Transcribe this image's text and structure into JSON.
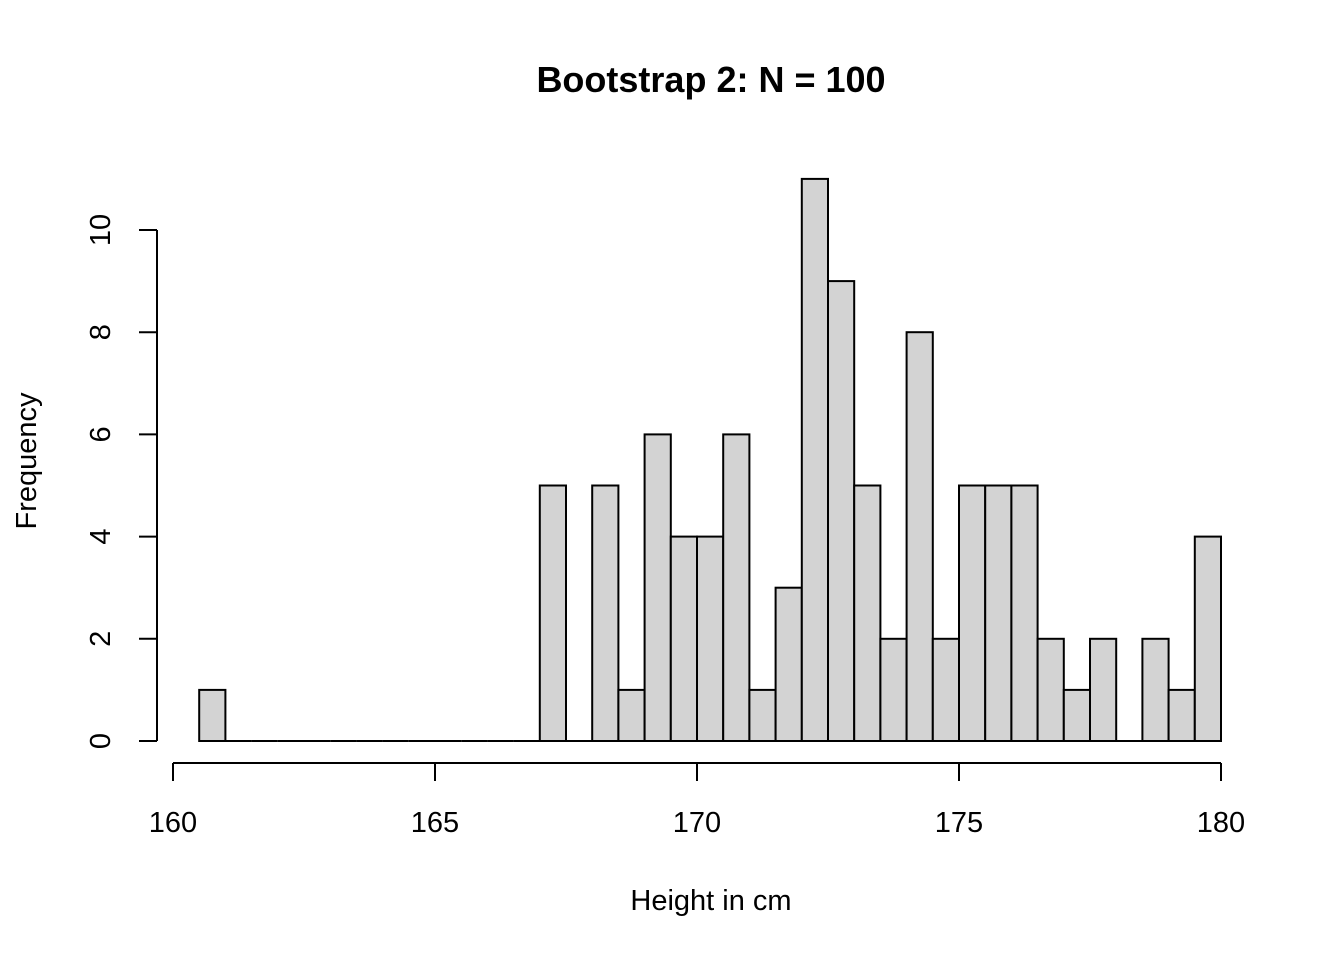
{
  "chart_data": {
    "type": "bar",
    "subtype": "histogram",
    "title": "Bootstrap 2: N = 100",
    "xlabel": "Height in cm",
    "ylabel": "Frequency",
    "bin_width": 0.5,
    "bin_start": 160.5,
    "x": [
      160.5,
      161.0,
      161.5,
      162.0,
      162.5,
      163.0,
      163.5,
      164.0,
      164.5,
      165.0,
      165.5,
      166.0,
      166.5,
      167.0,
      167.5,
      168.0,
      168.5,
      169.0,
      169.5,
      170.0,
      170.5,
      171.0,
      171.5,
      172.0,
      172.5,
      173.0,
      173.5,
      174.0,
      174.5,
      175.0,
      175.5,
      176.0,
      176.5,
      177.0,
      177.5,
      178.0,
      178.5,
      179.0,
      179.5
    ],
    "values": [
      1,
      0,
      0,
      0,
      0,
      0,
      0,
      0,
      0,
      0,
      0,
      0,
      0,
      5,
      0,
      5,
      1,
      6,
      4,
      4,
      6,
      1,
      3,
      11,
      9,
      5,
      2,
      8,
      2,
      5,
      5,
      5,
      2,
      1,
      2,
      0,
      2,
      1,
      4
    ],
    "xlim": [
      160,
      180
    ],
    "ylim": [
      0,
      11
    ],
    "x_ticks": [
      "160",
      "165",
      "170",
      "175",
      "180"
    ],
    "y_ticks": [
      "0",
      "2",
      "4",
      "6",
      "8",
      "10"
    ],
    "bar_color": "#d3d3d3",
    "edge_color": "#000000",
    "grid": false
  }
}
